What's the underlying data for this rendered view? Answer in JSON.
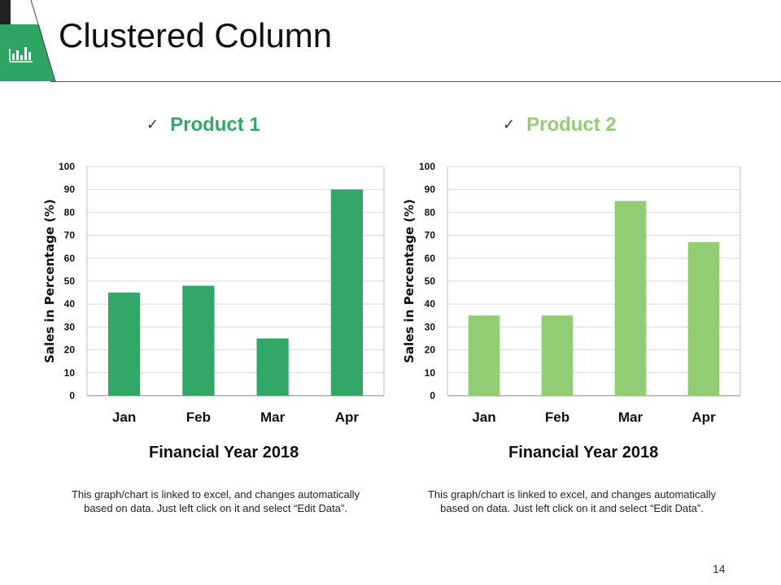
{
  "header": {
    "title": "Clustered Column",
    "icon": "bar-chart-icon",
    "accent": "#2ea562"
  },
  "page_number": "14",
  "products": [
    {
      "heading": "Product 1",
      "check": "✓",
      "color": "#32a768",
      "footer": "Financial Year 2018",
      "note": "This graph/chart is linked to excel, and changes automatically based on data. Just left click on it and select “Edit Data”."
    },
    {
      "heading": "Product 2",
      "check": "✓",
      "color": "#92cd73",
      "footer": "Financial Year 2018",
      "note": "This graph/chart is linked to excel, and changes automatically based on data. Just left click on it and select “Edit Data”."
    }
  ],
  "chart_data": [
    {
      "type": "bar",
      "title": "Product 1",
      "categories": [
        "Jan",
        "Feb",
        "Mar",
        "Apr"
      ],
      "values": [
        45,
        48,
        25,
        90
      ],
      "ylabel": "Sales in Percentage (%)",
      "xlabel": "Financial Year 2018",
      "ylim": [
        0,
        100
      ],
      "yticks": [
        0,
        10,
        20,
        30,
        40,
        50,
        60,
        70,
        80,
        90,
        100
      ],
      "grid": true,
      "color": "#32a768"
    },
    {
      "type": "bar",
      "title": "Product 2",
      "categories": [
        "Jan",
        "Feb",
        "Mar",
        "Apr"
      ],
      "values": [
        35,
        35,
        85,
        67
      ],
      "ylabel": "Sales in Percentage (%)",
      "xlabel": "Financial Year 2018",
      "ylim": [
        0,
        100
      ],
      "yticks": [
        0,
        10,
        20,
        30,
        40,
        50,
        60,
        70,
        80,
        90,
        100
      ],
      "grid": true,
      "color": "#92cd73"
    }
  ]
}
